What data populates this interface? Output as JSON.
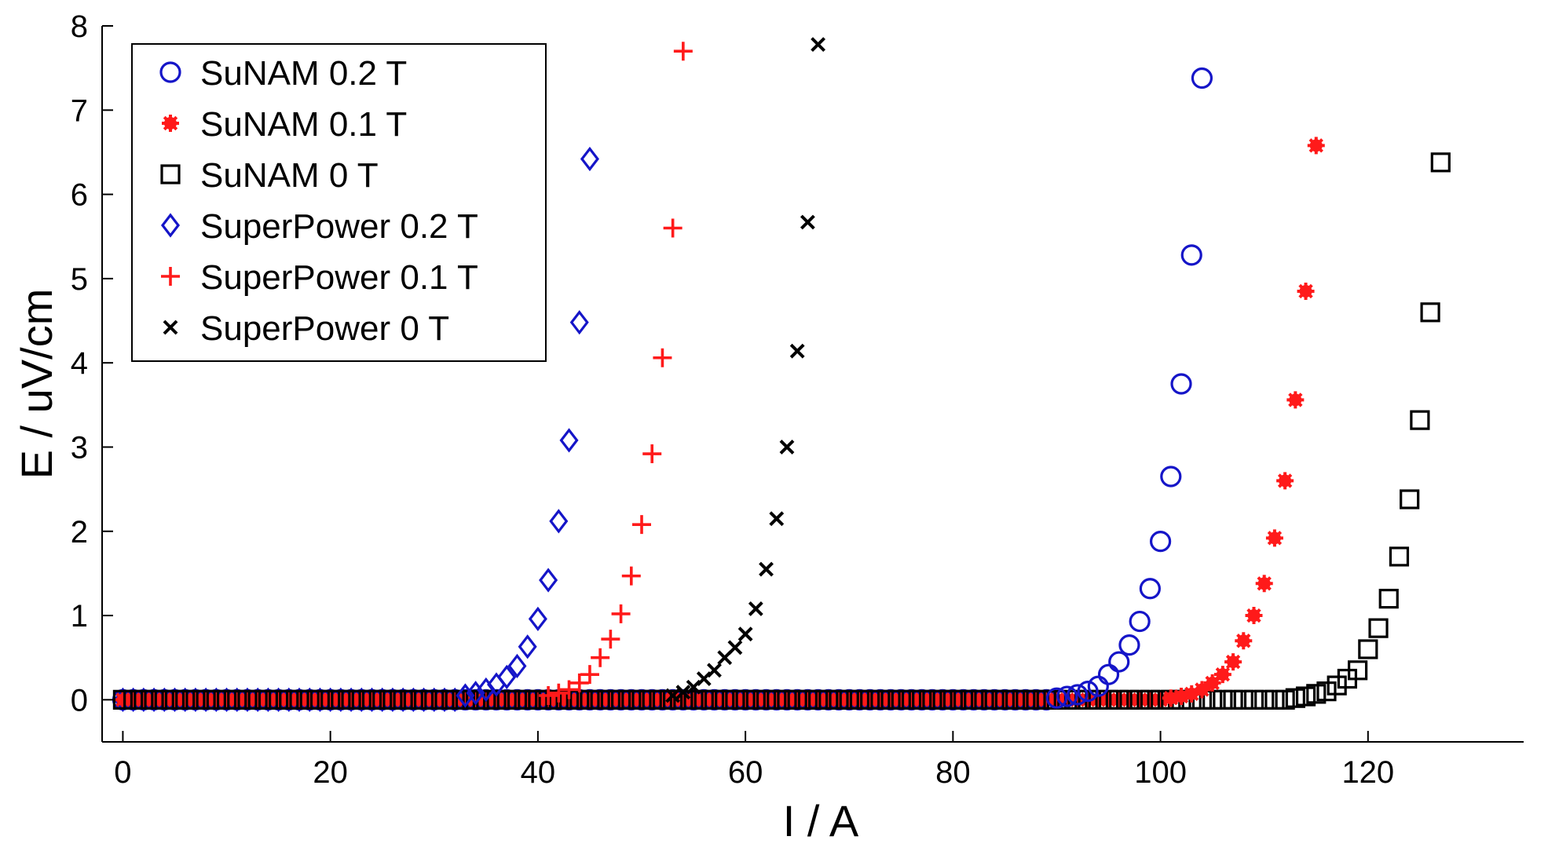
{
  "chart_data": {
    "type": "scatter",
    "title": "",
    "xlabel": "I / A",
    "ylabel": "E / uV/cm",
    "xlim": [
      -2,
      135
    ],
    "ylim": [
      -0.5,
      8
    ],
    "xticks": [
      0,
      20,
      40,
      60,
      80,
      100,
      120
    ],
    "yticks": [
      0,
      1,
      2,
      3,
      4,
      5,
      6,
      7,
      8
    ],
    "grid": false,
    "legend_position": "top-left",
    "series": [
      {
        "name": "SuNAM 0.2 T",
        "marker": "circle",
        "color": "#1515c8",
        "x": [
          90,
          91,
          92,
          93,
          94,
          95,
          96,
          97,
          98,
          99,
          100,
          101,
          102,
          103,
          104
        ],
        "y": [
          0.02,
          0.04,
          0.06,
          0.1,
          0.16,
          0.3,
          0.45,
          0.65,
          0.93,
          1.32,
          1.88,
          2.65,
          3.75,
          5.28,
          7.38
        ]
      },
      {
        "name": "SuNAM 0.1 T",
        "marker": "filled-star",
        "color": "#ff1a1a",
        "x": [
          101,
          102,
          103,
          104,
          105,
          106,
          107,
          108,
          109,
          110,
          111,
          112,
          113,
          114,
          115
        ],
        "y": [
          0.02,
          0.04,
          0.07,
          0.12,
          0.2,
          0.3,
          0.45,
          0.7,
          1.0,
          1.38,
          1.92,
          2.6,
          3.56,
          4.85,
          6.58
        ]
      },
      {
        "name": "SuNAM 0 T",
        "marker": "square",
        "color": "#000000",
        "x": [
          113,
          114,
          115,
          116,
          117,
          118,
          119,
          120,
          121,
          122,
          123,
          124,
          125,
          126,
          127
        ],
        "y": [
          0.02,
          0.04,
          0.07,
          0.1,
          0.17,
          0.25,
          0.35,
          0.6,
          0.85,
          1.2,
          1.7,
          2.38,
          3.32,
          4.6,
          6.38
        ]
      },
      {
        "name": "SuperPower 0.2 T",
        "marker": "diamond",
        "color": "#1515c8",
        "x": [
          33,
          34,
          35,
          36,
          37,
          38,
          39,
          40,
          41,
          42,
          43,
          44,
          45
        ],
        "y": [
          0.05,
          0.08,
          0.12,
          0.18,
          0.27,
          0.4,
          0.63,
          0.96,
          1.42,
          2.12,
          3.08,
          4.48,
          6.42
        ]
      },
      {
        "name": "SuperPower 0.1 T",
        "marker": "plus",
        "color": "#ff1a1a",
        "x": [
          41,
          42,
          43,
          44,
          45,
          46,
          47,
          48,
          49,
          50,
          51,
          52,
          53,
          54
        ],
        "y": [
          0.05,
          0.08,
          0.12,
          0.2,
          0.3,
          0.5,
          0.72,
          1.02,
          1.47,
          2.08,
          2.92,
          4.06,
          5.6,
          7.7
        ]
      },
      {
        "name": "SuperPower 0 T",
        "marker": "x",
        "color": "#000000",
        "x": [
          53,
          54,
          55,
          56,
          57,
          58,
          59,
          60,
          61,
          62,
          63,
          64,
          65,
          66,
          67
        ],
        "y": [
          0.05,
          0.09,
          0.15,
          0.25,
          0.35,
          0.5,
          0.62,
          0.78,
          1.08,
          1.55,
          2.15,
          3.0,
          4.14,
          5.67,
          7.78
        ]
      }
    ]
  }
}
